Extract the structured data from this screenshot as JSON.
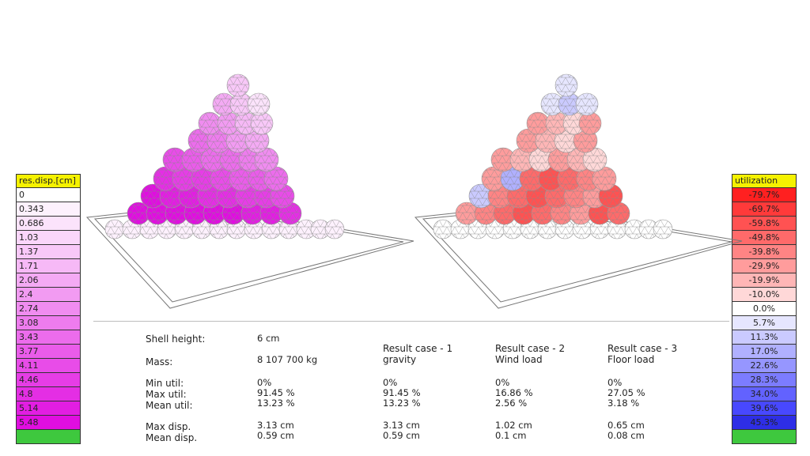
{
  "left_legend": {
    "title": "res.disp.[cm]",
    "items": [
      {
        "label": "0",
        "color": "#ffffff"
      },
      {
        "label": "0.343",
        "color": "#fdf1fd"
      },
      {
        "label": "0.686",
        "color": "#fbe3fb"
      },
      {
        "label": "1.03",
        "color": "#fad6fa"
      },
      {
        "label": "1.37",
        "color": "#f8c8f8"
      },
      {
        "label": "1.71",
        "color": "#f6b9f6"
      },
      {
        "label": "2.06",
        "color": "#f4aaf4"
      },
      {
        "label": "2.4",
        "color": "#f29bf2"
      },
      {
        "label": "2.74",
        "color": "#f08cf0"
      },
      {
        "label": "3.08",
        "color": "#ee7cee"
      },
      {
        "label": "3.43",
        "color": "#ec6cec"
      },
      {
        "label": "3.77",
        "color": "#ea5cea"
      },
      {
        "label": "4.11",
        "color": "#e84ce8"
      },
      {
        "label": "4.46",
        "color": "#e63de6"
      },
      {
        "label": "4.8",
        "color": "#e42ee4"
      },
      {
        "label": "5.14",
        "color": "#e21ee2"
      },
      {
        "label": "5.48",
        "color": "#e00ee0"
      }
    ],
    "footer_color": "#3ec83e"
  },
  "right_legend": {
    "title": "utilization",
    "items": [
      {
        "label": "-79.7%",
        "color": "#ff2020"
      },
      {
        "label": "-69.7%",
        "color": "#ff3a3a"
      },
      {
        "label": "-59.8%",
        "color": "#ff5252"
      },
      {
        "label": "-49.8%",
        "color": "#ff6a6a"
      },
      {
        "label": "-39.8%",
        "color": "#ff8484"
      },
      {
        "label": "-29.9%",
        "color": "#ff9c9c"
      },
      {
        "label": "-19.9%",
        "color": "#ffb6b6"
      },
      {
        "label": "-10.0%",
        "color": "#ffd8d8"
      },
      {
        "label": "0.0%",
        "color": "#ffffff"
      },
      {
        "label": "5.7%",
        "color": "#e6e6ff"
      },
      {
        "label": "11.3%",
        "color": "#cacaff"
      },
      {
        "label": "17.0%",
        "color": "#b0b0ff"
      },
      {
        "label": "22.6%",
        "color": "#9696ff"
      },
      {
        "label": "28.3%",
        "color": "#7c7cff"
      },
      {
        "label": "34.0%",
        "color": "#6262ff"
      },
      {
        "label": "39.6%",
        "color": "#4848ff"
      },
      {
        "label": "45.3%",
        "color": "#2e2ee6"
      }
    ],
    "footer_color": "#3ec83e"
  },
  "summary": {
    "shell_height_label": "Shell height:",
    "shell_height_value": "6 cm",
    "mass_label": "Mass:",
    "mass_value": "8 107 700 kg",
    "min_util_label": "Min util:",
    "max_util_label": "Max util:",
    "mean_util_label": "Mean util:",
    "max_disp_label": "Max disp.",
    "mean_disp_label": "Mean disp.",
    "overall": {
      "min_util": "0%",
      "max_util": "91.45 %",
      "mean_util": "13.23 %",
      "max_disp": "3.13 cm",
      "mean_disp": "0.59 cm"
    },
    "cases": [
      {
        "title": "Result case - 1",
        "name": "gravity",
        "min_util": "0%",
        "max_util": "91.45 %",
        "mean_util": "13.23 %",
        "max_disp": "3.13 cm",
        "mean_disp": "0.59 cm"
      },
      {
        "title": "Result case - 2",
        "name": "Wind load",
        "min_util": "0%",
        "max_util": "16.86 %",
        "mean_util": "2.56 %",
        "max_disp": "1.02 cm",
        "mean_disp": "0.1 cm"
      },
      {
        "title": "Result case - 3",
        "name": "Floor load",
        "min_util": "0%",
        "max_util": "27.05 %",
        "mean_util": "3.18 %",
        "max_disp": "0.65 cm",
        "mean_disp": "0.08 cm"
      }
    ]
  }
}
